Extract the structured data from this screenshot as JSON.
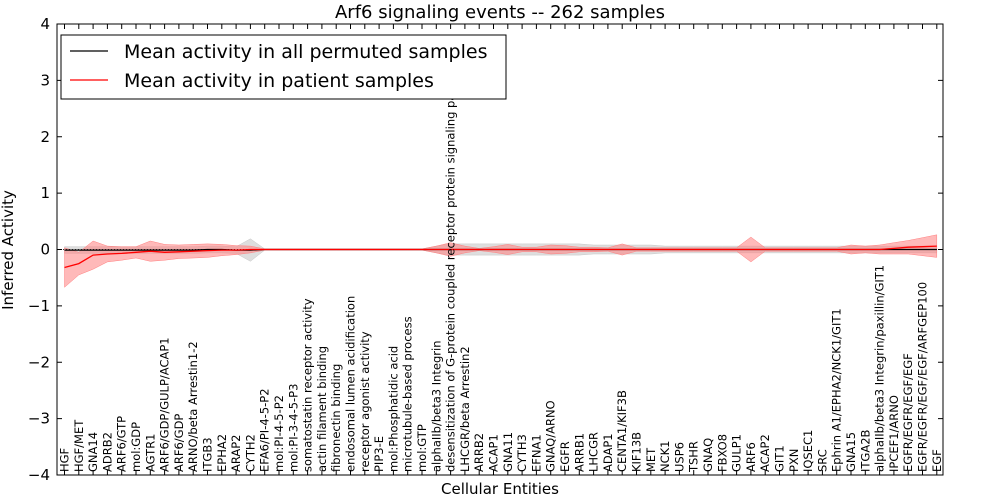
{
  "chart_data": {
    "type": "line",
    "title": "Arf6 signaling events -- 262 samples",
    "xlabel": "Cellular Entities",
    "ylabel": "Inferred Activity",
    "ylim": [
      -4,
      4
    ],
    "yticks": [
      "−4",
      "−3",
      "−2",
      "−1",
      "0",
      "1",
      "2",
      "3",
      "4"
    ],
    "grid": false,
    "legend_position": "top-left",
    "categories": [
      "HGF",
      "HGF/MET",
      "GNA14",
      "ADRB2",
      "ARF6/GTP",
      "mol:GDP",
      "AGTR1",
      "ARF6/GDP/GULP/ACAP1",
      "ARF6/GDP",
      "ARNO/beta Arrestin1-2",
      "ITGB3",
      "EPHA2",
      "ARAP2",
      "CYTH2",
      "EFA6/PI-4-5-P2",
      "mol:PI-4-5-P2",
      "mol:PI-3-4-5-P3",
      "somatostatin receptor activity",
      "actin filament binding",
      "fibronectin binding",
      "endosomal lumen acidification",
      "receptor agonist activity",
      "PIP3-E",
      "mol:Phosphatidic acid",
      "microtubule-based process",
      "mol:GTP",
      "alphaIIb/beta3 Integrin",
      "desensitization of G-protein coupled receptor protein signaling pathway",
      "LHCGR/beta Arrestin2",
      "ARRB2",
      "ACAP1",
      "GNA11",
      "CYTH3",
      "EFNA1",
      "GNAQ/ARNO",
      "EGFR",
      "ARRB1",
      "LHCGR",
      "ADAP1",
      "CENTA1/KIF3B",
      "KIF13B",
      "MET",
      "NCK1",
      "USP6",
      "TSHR",
      "GNAQ",
      "FBXO8",
      "GULP1",
      "ARF6",
      "ACAP2",
      "GIT1",
      "PXN",
      "IQSEC1",
      "SRC",
      "Ephrin A1/EPHA2/NCK1/GIT1",
      "GNA15",
      "ITGA2B",
      "alphaIIb/beta3 Integrin/paxillin/GIT1",
      "IPCEF1/ARNO",
      "EGFR/EGFR/EGF/EGF",
      "EGFR/EGFR/EGF/EGF/ARFGEP100",
      "EGF"
    ],
    "series": [
      {
        "name": "Mean activity in all permuted samples",
        "color": "#000000",
        "band_color": "#c8c8c8",
        "values": [
          -0.01,
          -0.01,
          -0.01,
          -0.01,
          -0.01,
          -0.01,
          -0.01,
          -0.01,
          -0.01,
          -0.01,
          0.0,
          0.0,
          -0.01,
          -0.01,
          0,
          0,
          0,
          0,
          0,
          0,
          0,
          0,
          0,
          0,
          0,
          0,
          0,
          0,
          0,
          0,
          0,
          0,
          0,
          0,
          0,
          0,
          0,
          0,
          0,
          0,
          0,
          0,
          0,
          0,
          0,
          0,
          0,
          0,
          0,
          0,
          0,
          0,
          0,
          0,
          0,
          0,
          0,
          0,
          0,
          0,
          0,
          0
        ],
        "band_half_width": [
          0.06,
          0.06,
          0.06,
          0.06,
          0.06,
          0.06,
          0.06,
          0.06,
          0.06,
          0.06,
          0.06,
          0.06,
          0.06,
          0.2,
          0.01,
          0.01,
          0.01,
          0.01,
          0.01,
          0.01,
          0.01,
          0.01,
          0.01,
          0.01,
          0.01,
          0.01,
          0.06,
          0.1,
          0.1,
          0.1,
          0.1,
          0.1,
          0.1,
          0.1,
          0.1,
          0.1,
          0.1,
          0.08,
          0.08,
          0.08,
          0.08,
          0.08,
          0.06,
          0.06,
          0.06,
          0.06,
          0.06,
          0.06,
          0.06,
          0.06,
          0.06,
          0.06,
          0.06,
          0.06,
          0.06,
          0.06,
          0.06,
          0.06,
          0.06,
          0.06,
          0.06,
          0.06
        ]
      },
      {
        "name": "Mean activity in patient samples",
        "color": "#ff0000",
        "band_color": "#ff8080",
        "values": [
          -0.32,
          -0.25,
          -0.1,
          -0.08,
          -0.07,
          -0.05,
          -0.03,
          -0.05,
          -0.04,
          -0.03,
          -0.02,
          -0.01,
          -0.01,
          0.0,
          0,
          0,
          0,
          0,
          0,
          0,
          0,
          0,
          0,
          0,
          0,
          0,
          0.0,
          0.0,
          0.0,
          0.0,
          0.0,
          0.0,
          0.0,
          0.0,
          0.0,
          0.0,
          0.0,
          0.0,
          0.0,
          0.0,
          0.0,
          0.0,
          0.0,
          0.0,
          0.0,
          0.0,
          0.0,
          0.0,
          0.0,
          0.0,
          0.0,
          0.0,
          0.0,
          0.0,
          0.0,
          0.0,
          0.0,
          0.0,
          0.02,
          0.04,
          0.05,
          0.06
        ],
        "band_half_width": [
          0.35,
          0.2,
          0.25,
          0.14,
          0.12,
          0.1,
          0.18,
          0.14,
          0.12,
          0.12,
          0.12,
          0.1,
          0.08,
          0.06,
          0.01,
          0.01,
          0.01,
          0.01,
          0.01,
          0.01,
          0.01,
          0.01,
          0.01,
          0.01,
          0.01,
          0.01,
          0.06,
          0.12,
          0.06,
          0.02,
          0.05,
          0.09,
          0.04,
          0.04,
          0.08,
          0.07,
          0.04,
          0.04,
          0.03,
          0.1,
          0.03,
          0.03,
          0.03,
          0.03,
          0.03,
          0.03,
          0.03,
          0.03,
          0.22,
          0.03,
          0.03,
          0.03,
          0.03,
          0.03,
          0.03,
          0.08,
          0.06,
          0.08,
          0.1,
          0.12,
          0.16,
          0.2
        ]
      }
    ]
  }
}
